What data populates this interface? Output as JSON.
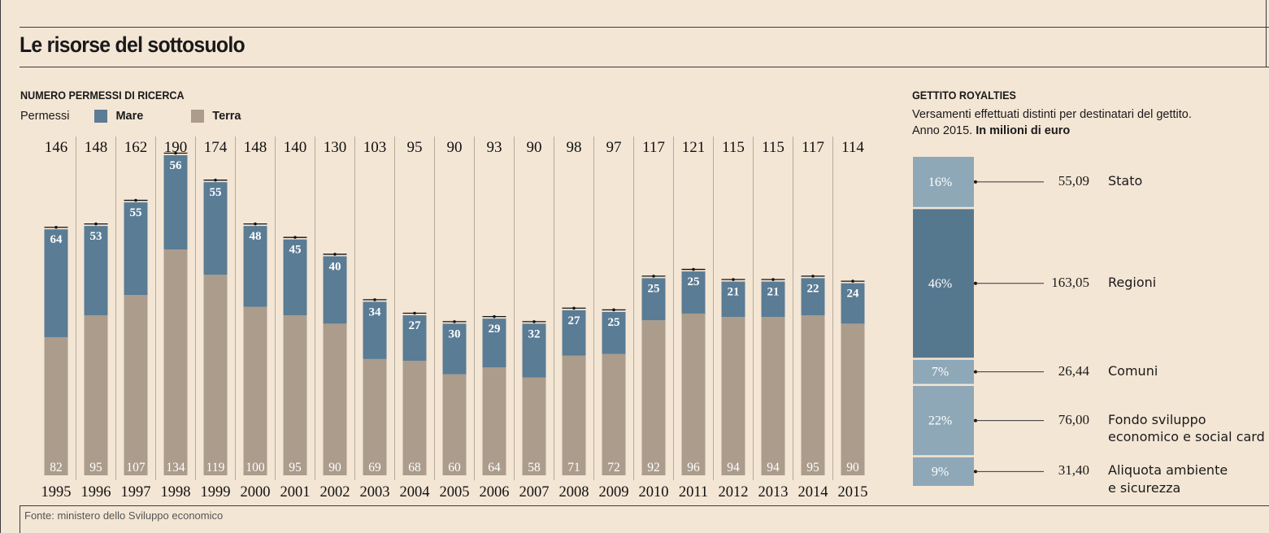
{
  "title": "Le risorse del sottosuolo",
  "left_panel": {
    "heading": "NUMERO PERMESSI DI RICERCA",
    "legend_prefix": "Permessi",
    "legend": [
      {
        "label": "Mare",
        "color": "#5a7c95"
      },
      {
        "label": "Terra",
        "color": "#ab9c8c"
      }
    ]
  },
  "right_panel": {
    "heading": "GETTITO ROYALTIES",
    "desc_line1": "Versamenti effettuati distinti per destinatari del gettito.",
    "desc_line2_prefix": "Anno 2015. ",
    "desc_line2_bold": "In milioni di euro"
  },
  "source": "Fonte: ministero dello Sviluppo economico",
  "colors": {
    "mare": "#5a7c95",
    "terra": "#ab9c8c",
    "royalty_light": "#8ea8b7",
    "royalty_dark": "#56788f",
    "background": "#f4e6d5"
  },
  "chart_data": [
    {
      "type": "bar",
      "stacked": true,
      "title": "NUMERO PERMESSI DI RICERCA",
      "categories": [
        "1995",
        "1996",
        "1997",
        "1998",
        "1999",
        "2000",
        "2001",
        "2002",
        "2003",
        "2004",
        "2005",
        "2006",
        "2007",
        "2008",
        "2009",
        "2010",
        "2011",
        "2012",
        "2013",
        "2014",
        "2015"
      ],
      "totals": [
        146,
        148,
        162,
        190,
        174,
        148,
        140,
        130,
        103,
        95,
        90,
        93,
        90,
        98,
        97,
        117,
        121,
        115,
        115,
        117,
        114
      ],
      "series": [
        {
          "name": "Terra",
          "values": [
            82,
            95,
            107,
            134,
            119,
            100,
            95,
            90,
            69,
            68,
            60,
            64,
            58,
            71,
            72,
            92,
            96,
            94,
            94,
            95,
            90
          ]
        },
        {
          "name": "Mare",
          "values": [
            64,
            53,
            55,
            56,
            55,
            48,
            45,
            40,
            34,
            27,
            30,
            29,
            32,
            27,
            25,
            25,
            25,
            21,
            21,
            22,
            24
          ]
        }
      ],
      "ylim": [
        0,
        190
      ]
    },
    {
      "type": "bar",
      "stacked": true,
      "title": "GETTITO ROYALTIES",
      "unit": "milioni di euro",
      "year": "2015",
      "segments": [
        {
          "name": "Stato",
          "label_lines": [
            "Stato"
          ],
          "value": 55.09,
          "value_label": "55,09",
          "percent": "16%",
          "shade": "light"
        },
        {
          "name": "Regioni",
          "label_lines": [
            "Regioni"
          ],
          "value": 163.05,
          "value_label": "163,05",
          "percent": "46%",
          "shade": "dark"
        },
        {
          "name": "Comuni",
          "label_lines": [
            "Comuni"
          ],
          "value": 26.44,
          "value_label": "26,44",
          "percent": "7%",
          "shade": "light"
        },
        {
          "name": "Fondo sviluppo economico e social card",
          "label_lines": [
            "Fondo sviluppo",
            "economico e social card"
          ],
          "value": 76.0,
          "value_label": "76,00",
          "percent": "22%",
          "shade": "light"
        },
        {
          "name": "Aliquota ambiente e sicurezza",
          "label_lines": [
            "Aliquota ambiente",
            "e sicurezza"
          ],
          "value": 31.4,
          "value_label": "31,40",
          "percent": "9%",
          "shade": "light"
        }
      ]
    }
  ]
}
